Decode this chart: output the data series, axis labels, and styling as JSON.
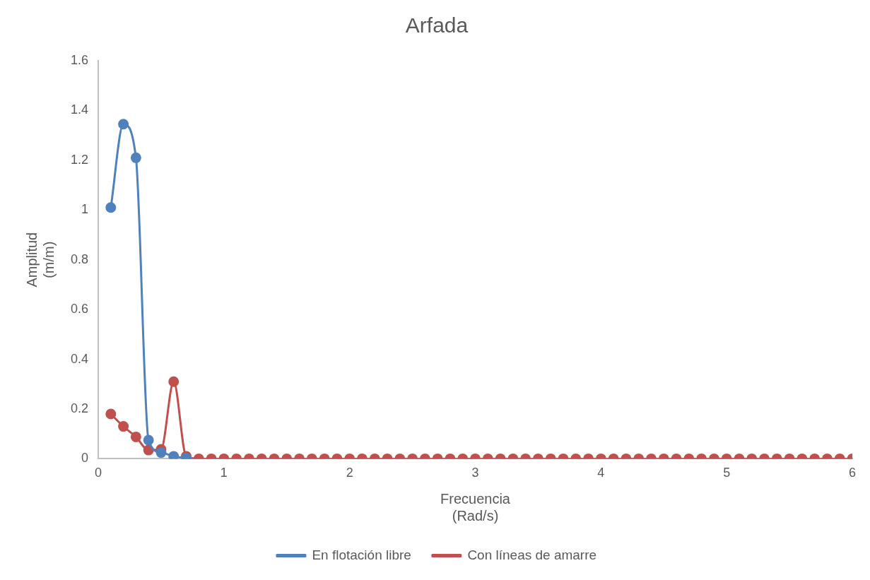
{
  "chart_data": {
    "type": "line",
    "title": "Arfada",
    "xlabel": "Frecuencia\n(Rad/s)",
    "ylabel": "Amplitud\n(m/m)",
    "x": [
      0.1,
      0.2,
      0.3,
      0.4,
      0.5,
      0.6,
      0.7,
      0.8,
      0.9,
      1.0,
      1.1,
      1.2,
      1.3,
      1.4,
      1.5,
      1.6,
      1.7,
      1.8,
      1.9,
      2.0,
      2.1,
      2.2,
      2.3,
      2.4,
      2.5,
      2.6,
      2.7,
      2.8,
      2.9,
      3.0,
      3.1,
      3.2,
      3.3,
      3.4,
      3.5,
      3.6,
      3.7,
      3.8,
      3.9,
      4.0,
      4.1,
      4.2,
      4.3,
      4.4,
      4.5,
      4.6,
      4.7,
      4.8,
      4.9,
      5.0,
      5.1,
      5.2,
      5.3,
      5.4,
      5.5,
      5.6,
      5.7,
      5.8,
      5.9,
      6.0
    ],
    "series": [
      {
        "name": "En flotación libre",
        "color": "#4f81bd",
        "x": [
          0.1,
          0.2,
          0.3,
          0.4,
          0.5,
          0.6,
          0.7
        ],
        "values": [
          1.01,
          1.345,
          1.21,
          0.075,
          0.025,
          0.01,
          0.003
        ]
      },
      {
        "name": "Con líneas de amarre",
        "color": "#c0504d",
        "values": [
          0.18,
          0.13,
          0.088,
          0.035,
          0.038,
          0.31,
          0.01,
          0,
          0,
          0,
          0,
          0,
          0,
          0,
          0,
          0,
          0,
          0,
          0,
          0,
          0,
          0,
          0,
          0,
          0,
          0,
          0,
          0,
          0,
          0,
          0,
          0,
          0,
          0,
          0,
          0,
          0,
          0,
          0,
          0,
          0,
          0,
          0,
          0,
          0,
          0,
          0,
          0,
          0,
          0,
          0,
          0,
          0,
          0,
          0,
          0,
          0,
          0,
          0,
          0
        ]
      }
    ],
    "xlim": [
      0,
      6
    ],
    "xticks": [
      0,
      1,
      2,
      3,
      4,
      5,
      6
    ],
    "ylim": [
      0,
      1.6
    ],
    "yticks": [
      0,
      0.2,
      0.4,
      0.6,
      0.8,
      1,
      1.2,
      1.4,
      1.6
    ],
    "grid": false,
    "legend": "bottom",
    "marker": "circle",
    "line_style": "solid"
  }
}
